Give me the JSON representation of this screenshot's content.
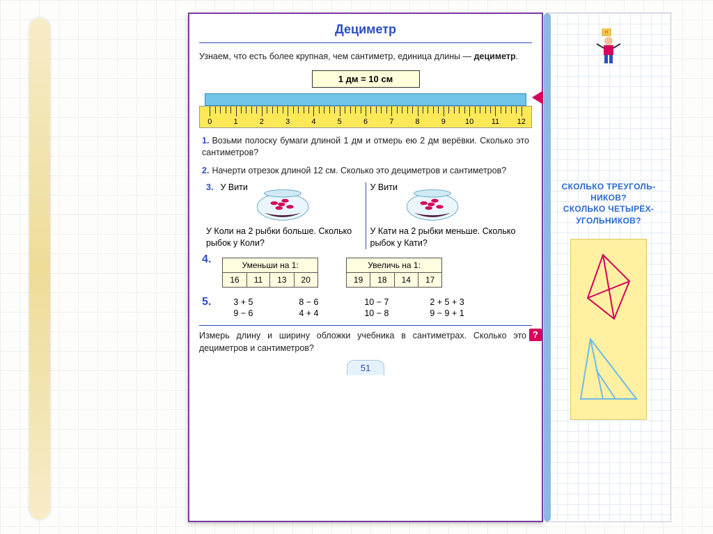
{
  "title": "Дециметр",
  "intro_a": "Узнаем, что есть более крупная, чем сантиметр, единица длины — ",
  "intro_b": "дециметр",
  "intro_c": ".",
  "formula": "1 дм  =  10 см",
  "ruler": {
    "min": 0,
    "max": 12,
    "labels": [
      "0",
      "1",
      "2",
      "3",
      "4",
      "5",
      "6",
      "7",
      "8",
      "9",
      "10",
      "11",
      "12"
    ]
  },
  "tasks": {
    "t1": {
      "n": "1.",
      "text": "Возьми полоску бумаги длиной 1 дм и отмерь ею 2 дм верёвки. Сколько это сантиметров?"
    },
    "t2": {
      "n": "2.",
      "text": "Начерти отрезок длиной 12 см. Сколько это дециметров и сантиметров?"
    },
    "t3": {
      "n": "3.",
      "left_top": "У Вити",
      "left_body": "У Коли на 2 рыбки больше. Сколько рыбок у Коли?",
      "right_top": "У Вити",
      "right_body": "У Кати на 2 рыбки меньше. Сколько рыбок у Кати?"
    },
    "t4": {
      "n": "4.",
      "left_hd": "Уменьши на 1:",
      "left_cells": [
        "16",
        "11",
        "13",
        "20"
      ],
      "right_hd": "Увеличь на 1:",
      "right_cells": [
        "19",
        "18",
        "14",
        "17"
      ]
    },
    "t5": {
      "n": "5.",
      "row1": [
        "3 + 5",
        "8 − 6",
        "10 − 7",
        "2 + 5 + 3"
      ],
      "row2": [
        "9 − 6",
        "4 + 4",
        "10 − 8",
        "9 − 9 + 1"
      ]
    }
  },
  "footer": "Измерь длину и ширину обложки учебника в сантиметрах. Сколько это дециметров и сантиметров?",
  "footer_badge": "?",
  "page_number": "51",
  "sidebar": {
    "question": "СКОЛЬКО ТРЕУГОЛЬ-НИКОВ? СКОЛЬКО ЧЕТЫРЁХ-УГОЛЬНИКОВ?",
    "shape_colors": {
      "red": "#d6005b",
      "blue": "#6fb9e8",
      "card": "#fff1a1"
    }
  },
  "colors": {
    "blue": "#2a4ec0",
    "magenta": "#d6005b",
    "ruler": "#fde958",
    "strip": "#6fc5e8"
  }
}
